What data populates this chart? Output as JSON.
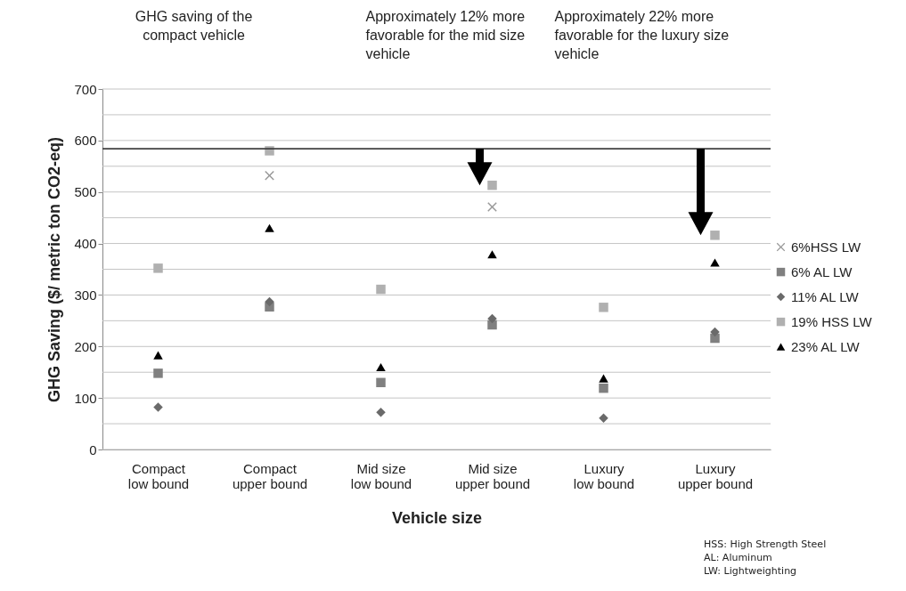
{
  "chart_data": {
    "type": "scatter",
    "xlabel": "Vehicle size",
    "ylabel": "GHG Saving ($/ metric ton CO2-eq)",
    "categories": [
      "Compact low bound",
      "Compact upper bound",
      "Mid size low bound",
      "Mid size upper bound",
      "Luxury low bound",
      "Luxury upper bound"
    ],
    "series": [
      {
        "name": "6%HSS LW",
        "color": "#999999",
        "marker": "cross",
        "values": [
          null,
          532,
          null,
          471,
          null,
          null
        ]
      },
      {
        "name": "6% AL LW",
        "color": "#808080",
        "marker": "square",
        "values": [
          148,
          277,
          130,
          242,
          119,
          216
        ]
      },
      {
        "name": "11% AL LW",
        "color": "#6a6a6a",
        "marker": "diamond",
        "values": [
          82,
          287,
          72,
          254,
          61,
          228
        ]
      },
      {
        "name": "19% HSS  LW",
        "color": "#b0b0b0",
        "marker": "square",
        "values": [
          352,
          580,
          311,
          513,
          276,
          416
        ]
      },
      {
        "name": "23% AL LW",
        "color": "#000000",
        "marker": "triangle",
        "values": [
          183,
          430,
          160,
          379,
          138,
          363
        ]
      }
    ],
    "ylim": [
      0,
      700
    ],
    "yticks": [
      0,
      {
        "value": 50,
        "label": null
      },
      100,
      {
        "value": 150,
        "label": null
      },
      200,
      {
        "value": 250,
        "label": null
      },
      300,
      {
        "value": 350,
        "label": null
      },
      400,
      {
        "value": 450,
        "label": null
      },
      500,
      {
        "value": 550,
        "label": null
      },
      600,
      {
        "value": 650,
        "label": null
      },
      700
    ],
    "grid": "y",
    "legend": "right",
    "ref_lines": [
      {
        "axis": "y",
        "value": 584,
        "color": "#404040"
      }
    ],
    "annotations": [
      "GHG saving of the compact vehicle",
      "Approximately 12% more favorable for the mid size vehicle",
      "Approximately 22% more favorable for the luxury size vehicle",
      "HSS: High Strength Steel",
      "AL: Aluminum",
      "LW: Lightweighting"
    ]
  }
}
